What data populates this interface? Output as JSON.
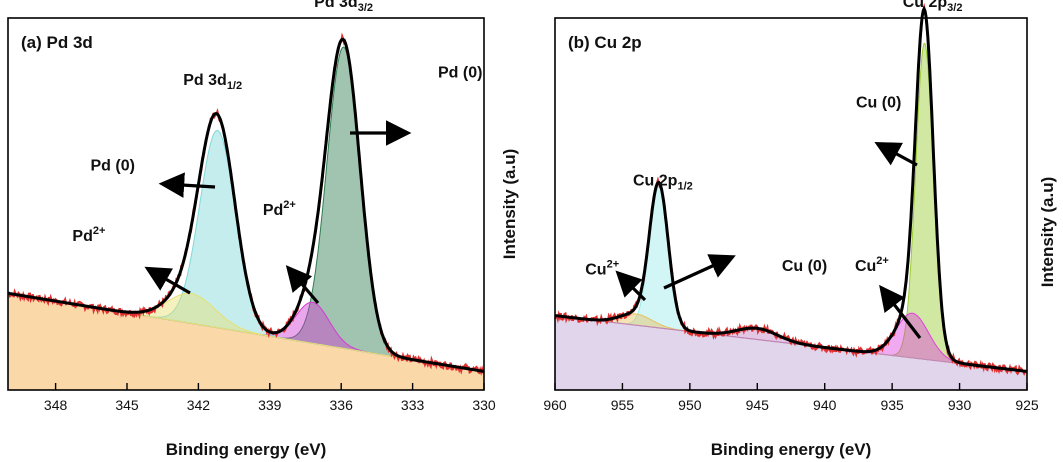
{
  "chart_data": [
    {
      "type": "line",
      "title": "(a) Pd 3d",
      "xlabel": "Binding energy (eV)",
      "ylabel": "",
      "xlim": [
        350,
        330
      ],
      "x_reversed": true,
      "xticks": [
        348,
        345,
        342,
        339,
        336,
        333,
        330
      ],
      "ylim": [
        0,
        1
      ],
      "y_tick_labels": false,
      "background": {
        "x": [
          350,
          330
        ],
        "y": [
          0.26,
          0.05
        ]
      },
      "peaks": [
        {
          "name": "Pd 3d3/2 Pd (0)",
          "center": 335.9,
          "sigma": 0.7,
          "height": 0.81,
          "color": "#2e7d50"
        },
        {
          "name": "Pd 3d3/2 Pd2+",
          "center": 337.2,
          "sigma": 0.7,
          "height": 0.11,
          "color": "#d23cd2"
        },
        {
          "name": "Pd 3d1/2 Pd (0)",
          "center": 341.2,
          "sigma": 0.75,
          "height": 0.53,
          "color": "#7fd8d8"
        },
        {
          "name": "Pd 3d1/2 Pd2+",
          "center": 342.3,
          "sigma": 1.0,
          "height": 0.08,
          "color": "#e8e070"
        }
      ],
      "annotations": [
        {
          "text": "Pd 3d",
          "sub": "3/2",
          "x": 335.9,
          "y": 1.03
        },
        {
          "text": "Pd 3d",
          "sub": "1/2",
          "x": 341.4,
          "y": 0.82
        },
        {
          "text": "Pd (0)",
          "x": 331.0,
          "y": 0.84
        },
        {
          "text": "Pd (0)",
          "x": 345.6,
          "y": 0.59
        },
        {
          "text": "Pd",
          "sup": "2+",
          "x": 346.6,
          "y": 0.4
        },
        {
          "text": "Pd",
          "sup": "2+",
          "x": 338.6,
          "y": 0.47
        }
      ]
    },
    {
      "type": "line",
      "title": "(b) Cu 2p",
      "xlabel": "Binding energy (eV)",
      "ylabel": "Intensity (a.u)",
      "xlim": [
        960,
        925
      ],
      "x_reversed": true,
      "xticks": [
        960,
        955,
        950,
        945,
        940,
        935,
        930,
        925
      ],
      "ylim": [
        0,
        1
      ],
      "y_tick_labels": false,
      "background": {
        "x": [
          960,
          925
        ],
        "y": [
          0.2,
          0.05
        ]
      },
      "peaks": [
        {
          "name": "Cu 2p3/2 Cu (0)",
          "center": 932.6,
          "sigma": 0.65,
          "height": 0.85,
          "color": "#9acd32"
        },
        {
          "name": "Cu 2p3/2 Cu2+",
          "center": 933.5,
          "sigma": 1.2,
          "height": 0.12,
          "color": "#e040e0"
        },
        {
          "name": "Cu 2p1/2 Cu (0)",
          "center": 952.3,
          "sigma": 0.7,
          "height": 0.38,
          "color": "#9ce8e8"
        },
        {
          "name": "Cu 2p1/2 Cu2+",
          "center": 954.0,
          "sigma": 1.2,
          "height": 0.03,
          "color": "#e8c060"
        },
        {
          "name": "satellite",
          "center": 945.0,
          "sigma": 1.5,
          "height": 0.03,
          "color": "#c080c0"
        }
      ],
      "annotations": [
        {
          "text": "Cu 2p",
          "sub": "3/2",
          "x": 932.0,
          "y": 1.03
        },
        {
          "text": "Cu 2p",
          "sub": "1/2",
          "x": 952.0,
          "y": 0.55
        },
        {
          "text": "Cu (0)",
          "x": 941.5,
          "y": 0.32
        },
        {
          "text": "Cu (0)",
          "x": 936.0,
          "y": 0.76
        },
        {
          "text": "Cu",
          "sup": "2+",
          "x": 956.5,
          "y": 0.31
        },
        {
          "text": "Cu",
          "sup": "2+",
          "x": 936.5,
          "y": 0.32
        }
      ]
    }
  ]
}
